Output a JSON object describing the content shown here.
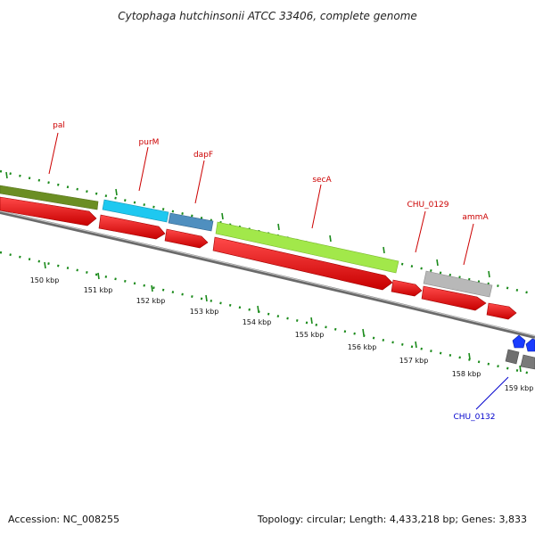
{
  "title": "Cytophaga hutchinsonii ATCC 33406, complete genome",
  "footer": {
    "accession": "Accession: NC_008255",
    "summary": "Topology: circular; Length: 4,433,218 bp; Genes: 3,833"
  },
  "colors": {
    "label_red": "#cc0000",
    "label_blue": "#0000cc",
    "cds_red": "#ff0000",
    "backbone": "#808080",
    "tick_green": "#1a8a1a"
  },
  "genes": [
    {
      "name": "pal",
      "color": "#6b8e23"
    },
    {
      "name": "purM",
      "color": "#1ec8f0"
    },
    {
      "name": "dapF",
      "color": "#4f8fbf"
    },
    {
      "name": "secA",
      "color": "#a2e84a"
    },
    {
      "name": "CHU_0129",
      "color": "#b8b8b8"
    },
    {
      "name": "ammA",
      "color": "#b8b8b8"
    },
    {
      "name": "CHU_0132",
      "color": "#777777"
    }
  ],
  "scale": {
    "unit": "kbp",
    "ticks": [
      "150 kbp",
      "151 kbp",
      "152 kbp",
      "153 kbp",
      "154 kbp",
      "155 kbp",
      "156 kbp",
      "157 kbp",
      "158 kbp",
      "159 kbp"
    ]
  }
}
